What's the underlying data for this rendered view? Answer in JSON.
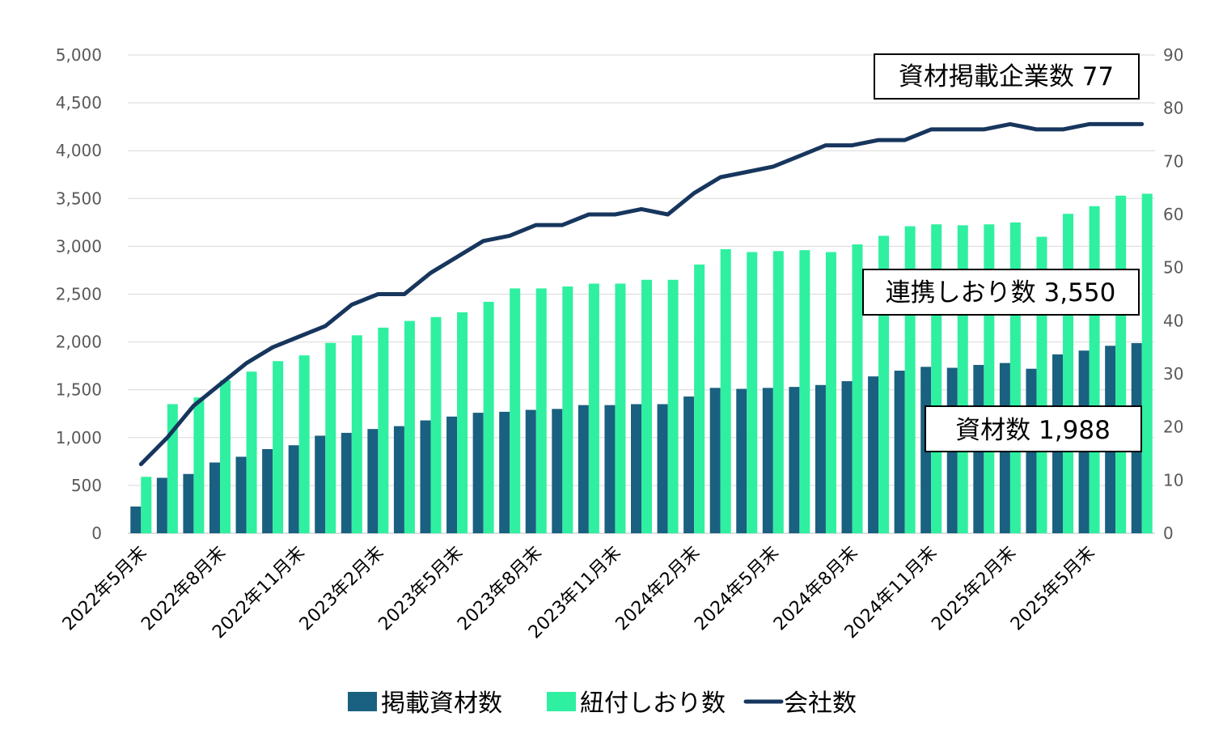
{
  "chart_data": {
    "type": "bar",
    "categories": [
      "2022年5月末",
      "2022年6月末",
      "2022年7月末",
      "2022年8月末",
      "2022年9月末",
      "2022年10月末",
      "2022年11月末",
      "2022年12月末",
      "2023年1月末",
      "2023年2月末",
      "2023年3月末",
      "2023年4月末",
      "2023年5月末",
      "2023年6月末",
      "2023年7月末",
      "2023年8月末",
      "2023年9月末",
      "2023年10月末",
      "2023年11月末",
      "2023年12月末",
      "2024年1月末",
      "2024年2月末",
      "2024年3月末",
      "2024年4月末",
      "2024年5月末",
      "2024年6月末",
      "2024年7月末",
      "2024年8月末",
      "2024年9月末",
      "2024年10月末",
      "2024年11月末",
      "2024年12月末",
      "2025年1月末",
      "2025年2月末",
      "2025年3月末",
      "2025年4月末",
      "2025年5月末",
      "2025年6月末",
      "2025年7月末"
    ],
    "x_tick_labels": [
      "2022年5月末",
      "",
      "",
      "2022年8月末",
      "",
      "",
      "2022年11月末",
      "",
      "",
      "2023年2月末",
      "",
      "",
      "2023年5月末",
      "",
      "",
      "2023年8月末",
      "",
      "",
      "2023年11月末",
      "",
      "",
      "2024年2月末",
      "",
      "",
      "2024年5月末",
      "",
      "",
      "2024年8月末",
      "",
      "",
      "2024年11月末",
      "",
      "",
      "2025年2月末",
      "",
      "",
      "2025年5月末",
      "",
      ""
    ],
    "series": [
      {
        "name": "掲載資材数",
        "kind": "bar",
        "axis": "left",
        "color": "#1a6080",
        "values": [
          280,
          580,
          620,
          740,
          800,
          880,
          920,
          1020,
          1050,
          1090,
          1120,
          1180,
          1220,
          1260,
          1270,
          1290,
          1300,
          1340,
          1340,
          1350,
          1350,
          1430,
          1520,
          1510,
          1520,
          1530,
          1550,
          1590,
          1640,
          1700,
          1740,
          1730,
          1760,
          1780,
          1720,
          1870,
          1910,
          1960,
          1988
        ]
      },
      {
        "name": "紐付しおり数",
        "kind": "bar",
        "axis": "left",
        "color": "#2ff0a0",
        "values": [
          590,
          1350,
          1420,
          1600,
          1690,
          1800,
          1860,
          1990,
          2070,
          2150,
          2220,
          2260,
          2310,
          2420,
          2560,
          2560,
          2580,
          2610,
          2610,
          2650,
          2650,
          2810,
          2970,
          2940,
          2950,
          2960,
          2940,
          3020,
          3110,
          3210,
          3230,
          3220,
          3230,
          3250,
          3100,
          3340,
          3420,
          3530,
          3550
        ]
      },
      {
        "name": "会社数",
        "kind": "line",
        "axis": "right",
        "color": "#17365d",
        "values": [
          13,
          18,
          24,
          28,
          32,
          35,
          37,
          39,
          43,
          45,
          45,
          49,
          52,
          55,
          56,
          58,
          58,
          60,
          60,
          61,
          60,
          64,
          67,
          68,
          69,
          71,
          73,
          73,
          74,
          74,
          76,
          76,
          76,
          77,
          76,
          76,
          77,
          77,
          77
        ]
      }
    ],
    "left_axis": {
      "ticks": [
        "0",
        "500",
        "1,000",
        "1,500",
        "2,000",
        "2,500",
        "3,000",
        "3,500",
        "4,000",
        "4,500",
        "5,000"
      ],
      "ylim": [
        0,
        5000
      ]
    },
    "right_axis": {
      "ticks": [
        "0",
        "10",
        "20",
        "30",
        "40",
        "50",
        "60",
        "70",
        "80",
        "90"
      ],
      "ylim": [
        0,
        90
      ]
    },
    "grid": true,
    "legend_position": "bottom",
    "annotations": [
      "資材掲載企業数  77",
      "連携しおり数  3,550",
      "資材数  1,988"
    ]
  }
}
